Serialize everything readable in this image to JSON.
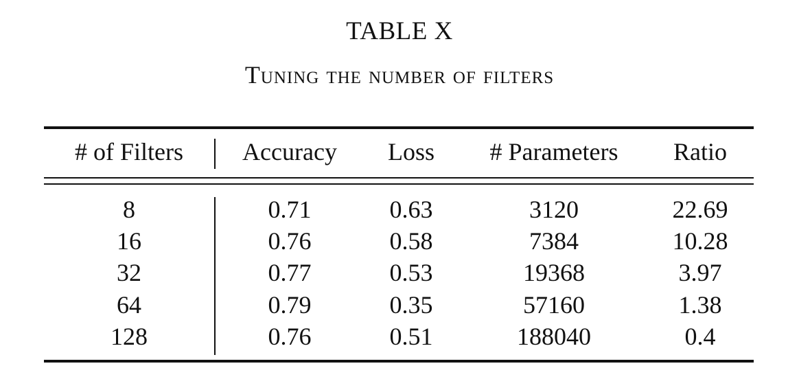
{
  "caption": {
    "title": "TABLE X",
    "subtitle": "Tuning the number of filters"
  },
  "table": {
    "headers": [
      "# of Filters",
      "Accuracy",
      "Loss",
      "# Parameters",
      "Ratio"
    ],
    "rows": [
      [
        "8",
        "0.71",
        "0.63",
        "3120",
        "22.69"
      ],
      [
        "16",
        "0.76",
        "0.58",
        "7384",
        "10.28"
      ],
      [
        "32",
        "0.77",
        "0.53",
        "19368",
        "3.97"
      ],
      [
        "64",
        "0.79",
        "0.35",
        "57160",
        "1.38"
      ],
      [
        "128",
        "0.76",
        "0.51",
        "188040",
        "0.4"
      ]
    ]
  }
}
